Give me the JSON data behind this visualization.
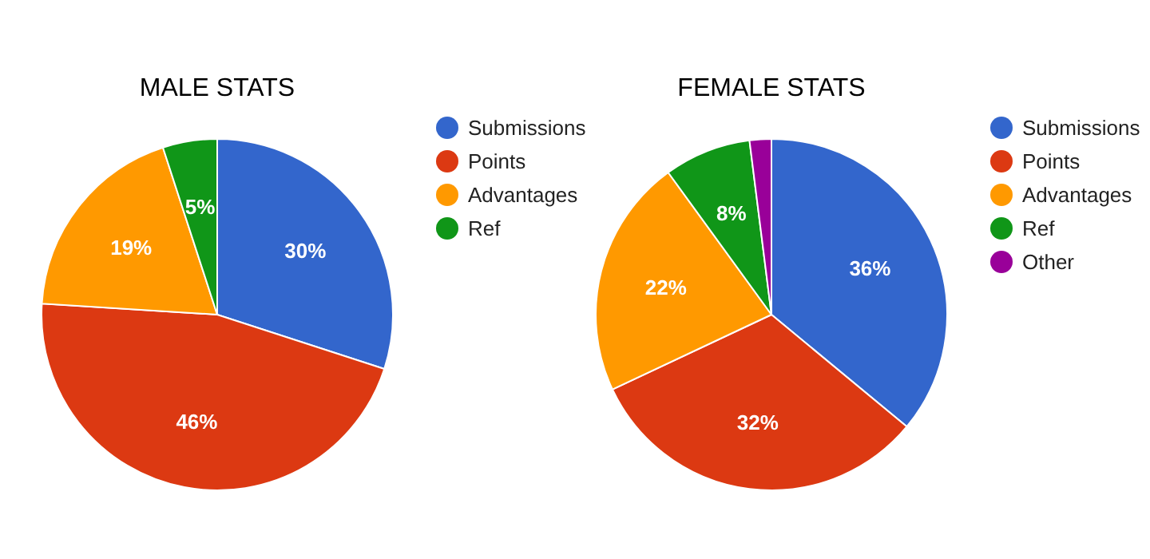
{
  "chart_data": [
    {
      "type": "pie",
      "title": "MALE STATS",
      "categories": [
        "Submissions",
        "Points",
        "Advantages",
        "Ref"
      ],
      "values": [
        30,
        46,
        19,
        5
      ],
      "colors": [
        "#3366cc",
        "#dc3912",
        "#ff9900",
        "#109618"
      ],
      "value_labels": [
        "30%",
        "46%",
        "19%",
        "5%"
      ],
      "legend": "right"
    },
    {
      "type": "pie",
      "title": "FEMALE STATS",
      "categories": [
        "Submissions",
        "Points",
        "Advantages",
        "Ref",
        "Other"
      ],
      "values": [
        36,
        32,
        22,
        8,
        2
      ],
      "colors": [
        "#3366cc",
        "#dc3912",
        "#ff9900",
        "#109618",
        "#990099"
      ],
      "value_labels": [
        "36%",
        "32%",
        "22%",
        "8%",
        null
      ],
      "legend": "right"
    }
  ]
}
